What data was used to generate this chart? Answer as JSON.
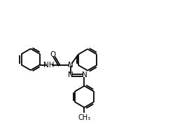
{
  "bg_color": "#ffffff",
  "line_color": "#000000",
  "lw": 1.3,
  "fs": 7.5,
  "xlim": [
    0,
    10
  ],
  "ylim": [
    0,
    7.5
  ],
  "ring_r": 0.62
}
